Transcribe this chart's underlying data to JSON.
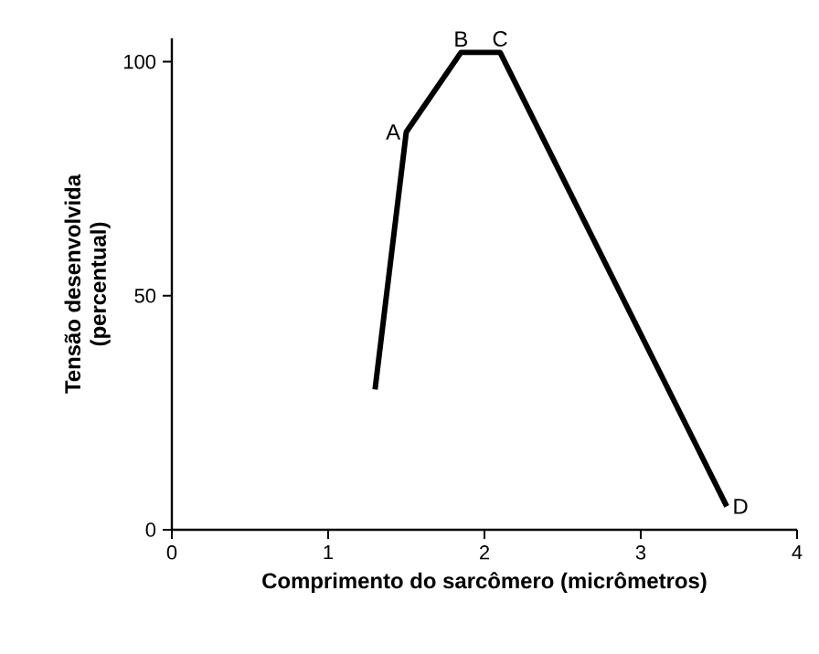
{
  "chart_data": {
    "type": "line",
    "xlabel": "Comprimento do sarcômero (micrômetros)",
    "ylabel": "Tensão desenvolvida\n(percentual)",
    "x": [
      1.3,
      1.5,
      1.85,
      2.1,
      3.55
    ],
    "series": [
      {
        "color": "#000000",
        "values": [
          30,
          85,
          102,
          102,
          5
        ]
      }
    ],
    "xlim": [
      0,
      4
    ],
    "ylim": [
      0,
      105
    ],
    "xticks": [
      0,
      1,
      2,
      3,
      4
    ],
    "yticks": [
      0,
      50,
      100
    ],
    "grid": false,
    "marker": "none",
    "line_style": "solid",
    "annotations": [
      {
        "text": "A",
        "x": 1.5,
        "y": 85
      },
      {
        "text": "B",
        "x": 1.85,
        "y": 102
      },
      {
        "text": "C",
        "x": 2.1,
        "y": 102
      },
      {
        "text": "D",
        "x": 3.55,
        "y": 5
      }
    ]
  }
}
